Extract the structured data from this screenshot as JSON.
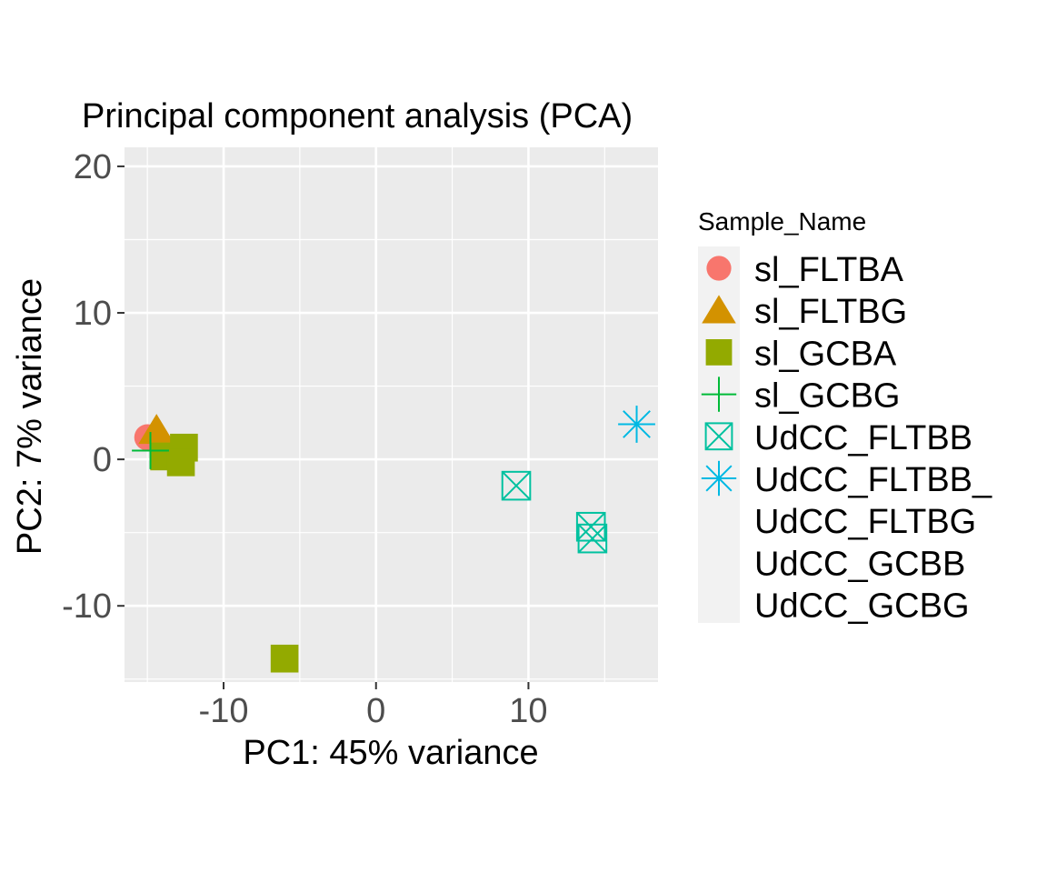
{
  "chart_data": {
    "type": "scatter",
    "title": "Principal component analysis (PCA)",
    "xlabel": "PC1: 45% variance",
    "ylabel": "PC2: 7% variance",
    "xlim": [
      -16.5,
      18.5
    ],
    "ylim": [
      -15.2,
      21.3
    ],
    "x_ticks": [
      -10,
      0,
      10
    ],
    "x_tick_labels": [
      "-10",
      "0",
      "10"
    ],
    "y_ticks": [
      -10,
      0,
      10,
      20
    ],
    "y_tick_labels": [
      "-10",
      "0",
      "10",
      "20"
    ],
    "grid": true,
    "legend": {
      "title": "Sample_Name",
      "position": "right",
      "entries": [
        "sl_FLTBA",
        "sl_FLTBG",
        "sl_GCBA",
        "sl_GCBG",
        "UdCC_FLTBB",
        "UdCC_FLTBB_",
        "UdCC_FLTBG",
        "UdCC_GCBB",
        "UdCC_GCBG"
      ]
    },
    "series": [
      {
        "name": "sl_FLTBA",
        "shape": "circle",
        "color": "#F8766D",
        "points": [
          [
            -15.0,
            1.5
          ]
        ]
      },
      {
        "name": "sl_FLTBG",
        "shape": "triangle",
        "color": "#D39200",
        "points": [
          [
            -14.4,
            2.0
          ]
        ]
      },
      {
        "name": "sl_GCBA",
        "shape": "square",
        "color": "#93AA00",
        "points": [
          [
            -13.9,
            0.2
          ],
          [
            -12.6,
            0.8
          ],
          [
            -12.8,
            -0.2
          ],
          [
            -6.0,
            -13.6
          ]
        ]
      },
      {
        "name": "sl_GCBG",
        "shape": "plus",
        "color": "#00BA38",
        "points": [
          [
            -14.8,
            0.6
          ]
        ]
      },
      {
        "name": "UdCC_FLTBB",
        "shape": "square-cross",
        "color": "#00C19F",
        "points": [
          [
            9.2,
            -1.8
          ],
          [
            14.1,
            -4.6
          ],
          [
            14.2,
            -5.4
          ]
        ]
      },
      {
        "name": "UdCC_FLTBB_",
        "shape": "asterisk",
        "color": "#00B9E3",
        "points": [
          [
            17.1,
            2.4
          ]
        ]
      },
      {
        "name": "UdCC_FLTBG",
        "shape": "none",
        "color": "#619CFF",
        "points": []
      },
      {
        "name": "UdCC_GCBB",
        "shape": "none",
        "color": "#DB72FB",
        "points": []
      },
      {
        "name": "UdCC_GCBG",
        "shape": "none",
        "color": "#FF61C3",
        "points": []
      }
    ]
  }
}
